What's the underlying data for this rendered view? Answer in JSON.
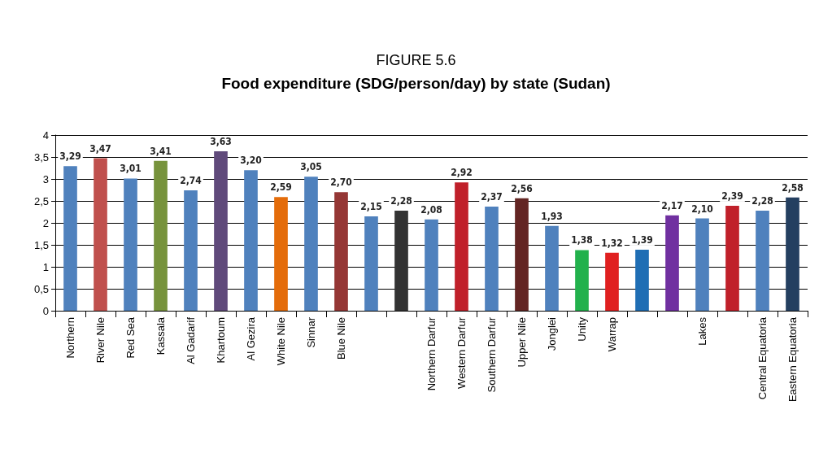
{
  "chart_data": {
    "type": "bar",
    "title": "FIGURE 5.6",
    "subtitle": "Food expenditure (SDG/person/day) by state (Sudan)",
    "categories": [
      "Northern",
      "River Nile",
      "Red Sea",
      "Kassala",
      "Al Gadarif",
      "Khartoum",
      "Al Gezira",
      "White Nile",
      "Sinnar",
      "Blue Nile",
      null,
      null,
      "Northern Darfur",
      "Western Darfur",
      "Southern Darfur",
      "Upper Nile",
      "Jonglei",
      "Unity",
      "Warrap",
      null,
      null,
      "Lakes",
      null,
      "Central Equatoria",
      "Eastern Equatoria"
    ],
    "values": [
      3.29,
      3.47,
      3.01,
      3.41,
      2.74,
      3.63,
      3.2,
      2.59,
      3.05,
      2.7,
      2.15,
      2.28,
      2.08,
      2.92,
      2.37,
      2.56,
      1.93,
      1.38,
      1.32,
      1.39,
      2.17,
      2.1,
      2.39,
      2.28,
      2.58
    ],
    "value_labels": [
      "3,29",
      "3,47",
      "3,01",
      "3,41",
      "2,74",
      "3,63",
      "3,20",
      "2,59",
      "3,05",
      "2,70",
      "2,15",
      "2,28",
      "2,08",
      "2,92",
      "2,37",
      "2,56",
      "1,93",
      "1,38",
      "1,32",
      "1,39",
      "2,17",
      "2,10",
      "2,39",
      "2,28",
      "2,58"
    ],
    "colors": [
      "#4f81bd",
      "#c0504d",
      "#4f81bd",
      "#77933c",
      "#4f81bd",
      "#604a7b",
      "#4f81bd",
      "#e46c0a",
      "#4f81bd",
      "#953735",
      "#4f81bd",
      "#333333",
      "#4f81bd",
      "#c0202a",
      "#4f81bd",
      "#632523",
      "#4f81bd",
      "#22b14c",
      "#e02020",
      "#1f6eb4",
      "#7030a0",
      "#4f81bd",
      "#c0202a",
      "#4f81bd",
      "#243f60"
    ],
    "ylim": [
      0,
      4
    ],
    "yticks": [
      0,
      {
        "value": 0.5,
        "label": "0,5"
      },
      1,
      {
        "value": 1.5,
        "label": "1,5"
      },
      2,
      {
        "value": 2.5,
        "label": "2,5"
      },
      3,
      {
        "value": 3.5,
        "label": "3,5"
      },
      4
    ],
    "grid": "y"
  }
}
